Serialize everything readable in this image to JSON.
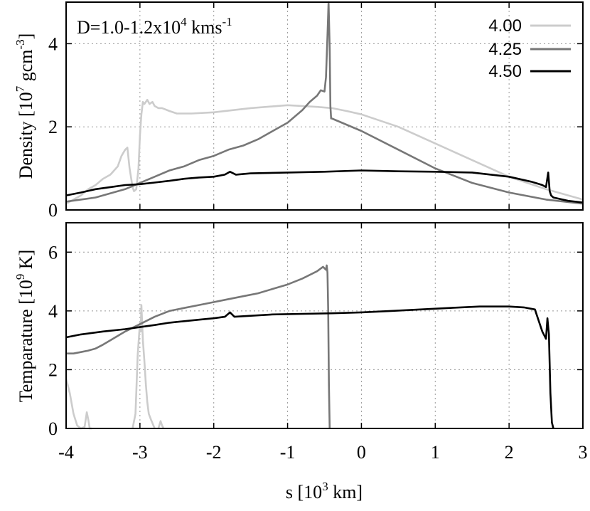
{
  "chart_data": [
    {
      "type": "line",
      "panel": "top",
      "annotation": {
        "base": "D=1.0-1.2x10",
        "sup": "4",
        "tail": " kms",
        "sup2": "-1"
      },
      "ylabel": {
        "base": "Density [10",
        "sup": "7",
        "tail": " gcm",
        "sup2": "-3",
        "close": "]"
      },
      "xlim": [
        -4,
        3
      ],
      "ylim": [
        0,
        5
      ],
      "yticks": [
        "0",
        "2",
        "4"
      ],
      "ytick_values": [
        0,
        2,
        4
      ],
      "grid": true,
      "legend_position": "top-right",
      "series": [
        {
          "name": "4.00",
          "color": "#cccccc",
          "x": [
            -4.0,
            -3.9,
            -3.8,
            -3.7,
            -3.6,
            -3.5,
            -3.4,
            -3.3,
            -3.25,
            -3.2,
            -3.17,
            -3.14,
            -3.1,
            -3.08,
            -3.05,
            -3.02,
            -3.0,
            -2.98,
            -2.96,
            -2.94,
            -2.9,
            -2.87,
            -2.83,
            -2.8,
            -2.75,
            -2.7,
            -2.6,
            -2.5,
            -2.3,
            -2.0,
            -1.5,
            -1.0,
            -0.6,
            -0.4,
            -0.2,
            0.0,
            0.5,
            1.0,
            1.5,
            2.0,
            2.5,
            3.0
          ],
          "y": [
            0.15,
            0.25,
            0.35,
            0.5,
            0.6,
            0.75,
            0.85,
            1.05,
            1.3,
            1.45,
            1.5,
            1.0,
            0.55,
            0.45,
            0.5,
            1.0,
            1.8,
            2.3,
            2.6,
            2.55,
            2.65,
            2.55,
            2.6,
            2.5,
            2.45,
            2.45,
            2.38,
            2.32,
            2.32,
            2.35,
            2.45,
            2.52,
            2.48,
            2.45,
            2.38,
            2.3,
            2.0,
            1.6,
            1.2,
            0.8,
            0.5,
            0.25
          ]
        },
        {
          "name": "4.25",
          "color": "#777777",
          "x": [
            -4.0,
            -3.8,
            -3.6,
            -3.4,
            -3.2,
            -3.0,
            -2.8,
            -2.6,
            -2.4,
            -2.2,
            -2.0,
            -1.8,
            -1.6,
            -1.4,
            -1.2,
            -1.0,
            -0.8,
            -0.7,
            -0.6,
            -0.55,
            -0.5,
            -0.48,
            -0.46,
            -0.445,
            -0.43,
            -0.42,
            -0.41,
            -0.4,
            0.0,
            0.5,
            1.0,
            1.5,
            2.0,
            2.5,
            3.0
          ],
          "y": [
            0.2,
            0.25,
            0.3,
            0.4,
            0.5,
            0.65,
            0.8,
            0.95,
            1.05,
            1.2,
            1.3,
            1.45,
            1.55,
            1.7,
            1.9,
            2.1,
            2.4,
            2.6,
            2.75,
            2.88,
            2.85,
            3.2,
            4.2,
            5.0,
            3.9,
            2.5,
            2.2,
            2.2,
            1.9,
            1.45,
            1.0,
            0.65,
            0.42,
            0.25,
            0.15
          ]
        },
        {
          "name": "4.50",
          "color": "#000000",
          "x": [
            -4.0,
            -3.8,
            -3.6,
            -3.4,
            -3.2,
            -3.0,
            -2.8,
            -2.6,
            -2.4,
            -2.2,
            -2.0,
            -1.85,
            -1.78,
            -1.7,
            -1.5,
            -1.0,
            -0.5,
            0.0,
            0.5,
            1.0,
            1.5,
            2.0,
            2.3,
            2.45,
            2.5,
            2.53,
            2.55,
            2.57,
            2.6,
            2.8,
            3.0
          ],
          "y": [
            0.35,
            0.42,
            0.5,
            0.55,
            0.6,
            0.62,
            0.66,
            0.7,
            0.75,
            0.78,
            0.8,
            0.85,
            0.92,
            0.85,
            0.88,
            0.9,
            0.92,
            0.95,
            0.93,
            0.92,
            0.9,
            0.8,
            0.68,
            0.6,
            0.55,
            0.9,
            0.45,
            0.35,
            0.3,
            0.22,
            0.18
          ]
        }
      ]
    },
    {
      "type": "line",
      "panel": "bottom",
      "ylabel": {
        "base": "Temparature [10",
        "sup": "9",
        "tail": " K",
        "close": "]"
      },
      "xlabel": {
        "base": "s [10",
        "sup": "3",
        "tail": " km]"
      },
      "xlim": [
        -4,
        3
      ],
      "ylim": [
        0,
        7
      ],
      "xticks": [
        "-4",
        "-3",
        "-2",
        "-1",
        "0",
        "1",
        "2",
        "3"
      ],
      "xtick_values": [
        -4,
        -3,
        -2,
        -1,
        0,
        1,
        2,
        3
      ],
      "yticks": [
        "0",
        "2",
        "4",
        "6"
      ],
      "ytick_values": [
        0,
        2,
        4,
        6
      ],
      "grid": true,
      "series": [
        {
          "name": "4.00",
          "color": "#cccccc",
          "segments": [
            {
              "x": [
                -4.0,
                -3.95,
                -3.9,
                -3.85,
                -3.8,
                -3.75,
                -3.72,
                -3.7,
                -3.68,
                -3.65
              ],
              "y": [
                1.7,
                1.2,
                0.5,
                0.1,
                0.0,
                0.05,
                0.55,
                0.3,
                0.0,
                0.0
              ]
            },
            {
              "x": [
                -3.1,
                -3.06,
                -3.03,
                -3.0,
                -2.99,
                -2.98,
                -2.96,
                -2.94,
                -2.92,
                -2.9,
                -2.88,
                -2.85,
                -2.8
              ],
              "y": [
                0.0,
                0.5,
                2.5,
                3.6,
                3.3,
                4.2,
                3.0,
                2.3,
                1.5,
                0.9,
                0.5,
                0.3,
                0.0
              ]
            },
            {
              "x": [
                -2.75,
                -2.72,
                -2.7,
                -2.68
              ],
              "y": [
                0.0,
                0.25,
                0.1,
                0.0
              ]
            }
          ]
        },
        {
          "name": "4.25",
          "color": "#777777",
          "x": [
            -4.0,
            -3.9,
            -3.8,
            -3.7,
            -3.6,
            -3.5,
            -3.4,
            -3.2,
            -3.0,
            -2.8,
            -2.6,
            -2.4,
            -2.2,
            -2.0,
            -1.8,
            -1.6,
            -1.4,
            -1.2,
            -1.0,
            -0.8,
            -0.6,
            -0.52,
            -0.48,
            -0.47,
            -0.46,
            -0.45,
            -0.44,
            -0.43
          ],
          "y": [
            2.55,
            2.55,
            2.6,
            2.65,
            2.72,
            2.85,
            3.0,
            3.3,
            3.55,
            3.8,
            4.0,
            4.1,
            4.2,
            4.3,
            4.4,
            4.5,
            4.6,
            4.75,
            4.9,
            5.1,
            5.35,
            5.5,
            5.4,
            5.55,
            5.3,
            4.0,
            1.5,
            0.0
          ]
        },
        {
          "name": "4.50",
          "color": "#000000",
          "x": [
            -4.0,
            -3.8,
            -3.5,
            -3.2,
            -3.0,
            -2.8,
            -2.6,
            -2.4,
            -2.2,
            -2.0,
            -1.85,
            -1.78,
            -1.72,
            -1.6,
            -1.2,
            -0.8,
            -0.4,
            0.0,
            0.4,
            0.8,
            1.2,
            1.6,
            2.0,
            2.2,
            2.35,
            2.45,
            2.5,
            2.52,
            2.54,
            2.56,
            2.58,
            2.6
          ],
          "y": [
            3.1,
            3.2,
            3.3,
            3.38,
            3.45,
            3.52,
            3.6,
            3.65,
            3.7,
            3.75,
            3.8,
            3.95,
            3.8,
            3.82,
            3.88,
            3.9,
            3.92,
            3.95,
            4.0,
            4.05,
            4.1,
            4.15,
            4.15,
            4.12,
            4.05,
            3.3,
            3.05,
            3.75,
            3.2,
            1.2,
            0.2,
            0.0
          ]
        }
      ]
    }
  ]
}
